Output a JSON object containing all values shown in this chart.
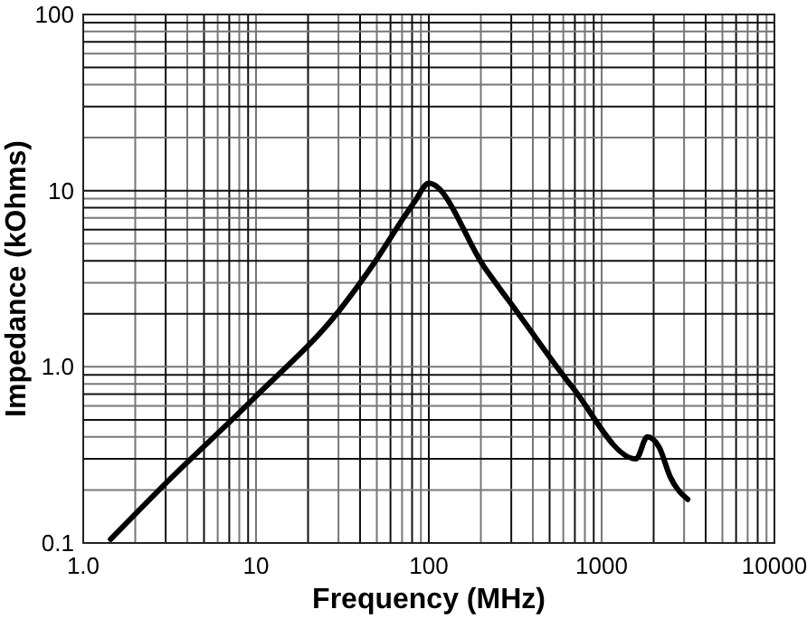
{
  "chart_data": {
    "type": "line",
    "xlabel": "Frequency (MHz)",
    "ylabel": "Impedance (kOhms)",
    "log": "xy",
    "grid": true,
    "marker": "none",
    "line_style": "solid",
    "xlim": [
      1,
      10000
    ],
    "ylim": [
      0.1,
      100
    ],
    "xticks": [
      {
        "value": 1,
        "label": "1.0"
      },
      {
        "value": 2,
        "label": null
      },
      {
        "value": 3,
        "label": null
      },
      {
        "value": 4,
        "label": null
      },
      {
        "value": 5,
        "label": null
      },
      {
        "value": 6,
        "label": null
      },
      {
        "value": 7,
        "label": null
      },
      {
        "value": 8,
        "label": null
      },
      {
        "value": 9,
        "label": null
      },
      10,
      {
        "value": 20,
        "label": null
      },
      {
        "value": 30,
        "label": null
      },
      {
        "value": 40,
        "label": null
      },
      {
        "value": 50,
        "label": null
      },
      {
        "value": 60,
        "label": null
      },
      {
        "value": 70,
        "label": null
      },
      {
        "value": 80,
        "label": null
      },
      {
        "value": 90,
        "label": null
      },
      100,
      {
        "value": 200,
        "label": null
      },
      {
        "value": 300,
        "label": null
      },
      {
        "value": 400,
        "label": null
      },
      {
        "value": 500,
        "label": null
      },
      {
        "value": 600,
        "label": null
      },
      {
        "value": 700,
        "label": null
      },
      {
        "value": 800,
        "label": null
      },
      {
        "value": 900,
        "label": null
      },
      1000,
      {
        "value": 2000,
        "label": null
      },
      {
        "value": 3000,
        "label": null
      },
      {
        "value": 4000,
        "label": null
      },
      {
        "value": 5000,
        "label": null
      },
      {
        "value": 6000,
        "label": null
      },
      {
        "value": 7000,
        "label": null
      },
      {
        "value": 8000,
        "label": null
      },
      {
        "value": 9000,
        "label": null
      },
      10000
    ],
    "yticks": [
      0.1,
      {
        "value": 0.2,
        "label": null
      },
      {
        "value": 0.3,
        "label": null
      },
      {
        "value": 0.4,
        "label": null
      },
      {
        "value": 0.5,
        "label": null
      },
      {
        "value": 0.6,
        "label": null
      },
      {
        "value": 0.7,
        "label": null
      },
      {
        "value": 0.8,
        "label": null
      },
      {
        "value": 0.9,
        "label": null
      },
      {
        "value": 1,
        "label": "1.0"
      },
      {
        "value": 2,
        "label": null
      },
      {
        "value": 3,
        "label": null
      },
      {
        "value": 4,
        "label": null
      },
      {
        "value": 5,
        "label": null
      },
      {
        "value": 6,
        "label": null
      },
      {
        "value": 7,
        "label": null
      },
      {
        "value": 8,
        "label": null
      },
      {
        "value": 9,
        "label": null
      },
      10,
      {
        "value": 20,
        "label": null
      },
      {
        "value": 30,
        "label": null
      },
      {
        "value": 40,
        "label": null
      },
      {
        "value": 50,
        "label": null
      },
      {
        "value": 60,
        "label": null
      },
      {
        "value": 70,
        "label": null
      },
      {
        "value": 80,
        "label": null
      },
      {
        "value": 90,
        "label": null
      },
      100
    ],
    "series": [
      {
        "color": "#000000",
        "x": [
          1.44,
          3.0,
          9.6,
          30.7,
          49,
          72,
          83,
          100,
          210,
          335,
          675,
          1580,
          1840,
          2150,
          2500,
          3150
        ],
        "values": [
          0.105,
          0.218,
          0.655,
          2.12,
          3.97,
          7.1,
          8.7,
          11,
          3.67,
          1.96,
          0.77,
          0.3,
          0.4,
          0.35,
          0.236,
          0.177
        ]
      }
    ]
  }
}
